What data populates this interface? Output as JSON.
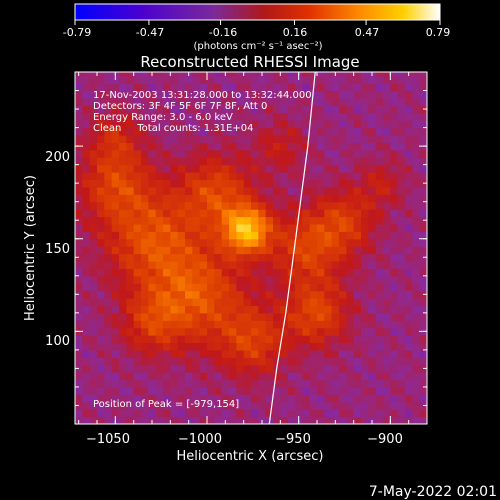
{
  "colorbar": {
    "ticks": [
      "-0.79",
      "-0.47",
      "-0.16",
      "0.16",
      "0.47",
      "0.79"
    ],
    "unit_label": "(photons cm⁻² s⁻¹ asec⁻²)"
  },
  "title": "Reconstructed RHESSI Image",
  "annotations": {
    "line1": "17-Nov-2003 13:31:28.000 to 13:32:44.000",
    "line2": "Detectors: 3F 4F 5F 6F 7F 8F, Att 0",
    "line3": "Energy Range: 3.0 - 6.0 keV",
    "line4": "Clean     Total counts: 1.31E+04",
    "peak": "Position of Peak = [-979,154]"
  },
  "footer": {
    "date": "7-May-2022 02:01"
  },
  "chart_data": {
    "type": "heatmap",
    "title": "Reconstructed RHESSI Image",
    "xlabel": "Heliocentric X (arcsec)",
    "ylabel": "Heliocentric Y (arcsec)",
    "xlim": [
      -1072,
      -880
    ],
    "ylim": [
      50,
      240
    ],
    "x_ticks": [
      -1050,
      -1000,
      -950,
      -900
    ],
    "y_ticks": [
      100,
      150,
      200
    ],
    "x_tick_labels": [
      "−1050",
      "−1000",
      "−950",
      "−900"
    ],
    "y_tick_labels": [
      "100",
      "150",
      "200"
    ],
    "colorbar_range": [
      -0.79,
      0.79
    ],
    "colormap": [
      "#0000ff",
      "#5a00c8",
      "#8c2a9a",
      "#c21818",
      "#e04400",
      "#ff8800",
      "#ffcc00",
      "#ffffff"
    ],
    "peak": {
      "x": -979,
      "y": 154
    },
    "limb_curve": [
      [
        -966,
        50
      ],
      [
        -962,
        80
      ],
      [
        -957,
        110
      ],
      [
        -953,
        140
      ],
      [
        -949,
        170
      ],
      [
        -945,
        200
      ],
      [
        -941,
        240
      ]
    ],
    "blobs": [
      {
        "x": -978,
        "y": 155,
        "sigma": 9,
        "amp": 0.75
      },
      {
        "x": -1005,
        "y": 120,
        "sigma": 18,
        "amp": 0.42
      },
      {
        "x": -1030,
        "y": 150,
        "sigma": 18,
        "amp": 0.4
      },
      {
        "x": -1050,
        "y": 180,
        "sigma": 14,
        "amp": 0.34
      },
      {
        "x": -995,
        "y": 175,
        "sigma": 14,
        "amp": 0.38
      },
      {
        "x": -945,
        "y": 145,
        "sigma": 14,
        "amp": 0.36
      },
      {
        "x": -925,
        "y": 160,
        "sigma": 12,
        "amp": 0.3
      },
      {
        "x": -940,
        "y": 110,
        "sigma": 12,
        "amp": 0.38
      },
      {
        "x": -975,
        "y": 95,
        "sigma": 13,
        "amp": 0.34
      },
      {
        "x": -1030,
        "y": 105,
        "sigma": 12,
        "amp": 0.28
      },
      {
        "x": -1050,
        "y": 205,
        "sigma": 10,
        "amp": 0.22
      },
      {
        "x": -905,
        "y": 180,
        "sigma": 9,
        "amp": 0.18
      },
      {
        "x": -960,
        "y": 200,
        "sigma": 10,
        "amp": 0.18
      }
    ]
  }
}
